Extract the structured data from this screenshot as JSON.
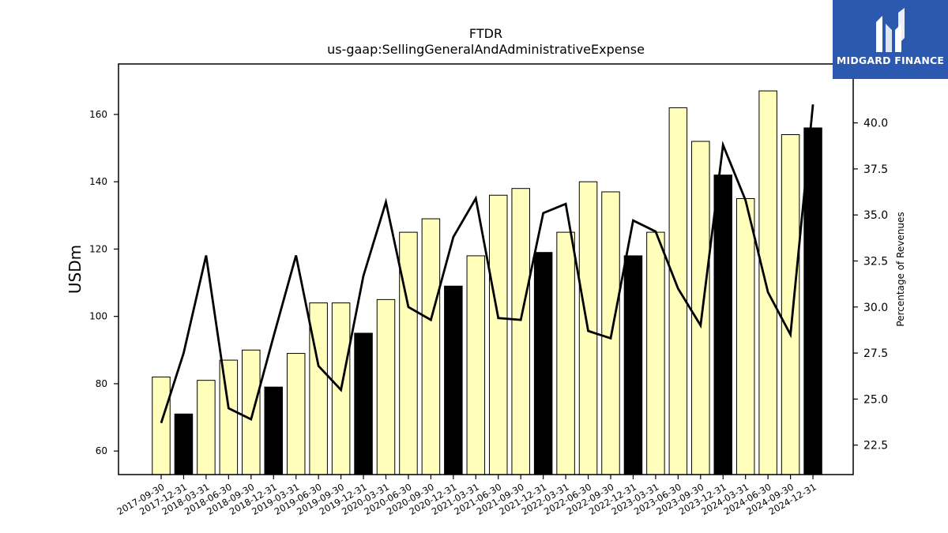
{
  "chart_data": {
    "type": "bar+line",
    "title": "FTDR",
    "subtitle": "us-gaap:SellingGeneralAndAdministrativeExpense",
    "ylabel": "USDm",
    "y2label": "Percentage of Revenues",
    "ylim": [
      53,
      175
    ],
    "y2lim": [
      20.9,
      43.2
    ],
    "yticks": [
      60,
      80,
      100,
      120,
      140,
      160
    ],
    "y2ticks": [
      "22.5",
      "25.0",
      "27.5",
      "30.0",
      "32.5",
      "35.0",
      "37.5",
      "40.0"
    ],
    "categories": [
      "2017-09-30",
      "2017-12-31",
      "2018-03-31",
      "2018-06-30",
      "2018-09-30",
      "2018-12-31",
      "2019-03-31",
      "2019-06-30",
      "2019-09-30",
      "2019-12-31",
      "2020-03-31",
      "2020-06-30",
      "2020-09-30",
      "2020-12-31",
      "2021-03-31",
      "2021-06-30",
      "2021-09-30",
      "2021-12-31",
      "2022-03-31",
      "2022-06-30",
      "2022-09-30",
      "2022-12-31",
      "2023-03-31",
      "2023-06-30",
      "2023-09-30",
      "2023-12-31",
      "2024-03-31",
      "2024-06-30",
      "2024-09-30",
      "2024-12-31"
    ],
    "bars": [
      82,
      71,
      81,
      87,
      90,
      79,
      89,
      104,
      104,
      95,
      105,
      125,
      129,
      109,
      118,
      136,
      138,
      119,
      125,
      140,
      137,
      118,
      125,
      162,
      152,
      142,
      135,
      167,
      154,
      156
    ],
    "bar_highlight": [
      false,
      true,
      false,
      false,
      false,
      true,
      false,
      false,
      false,
      true,
      false,
      false,
      false,
      true,
      false,
      false,
      false,
      true,
      false,
      false,
      false,
      true,
      false,
      false,
      false,
      true,
      false,
      false,
      false,
      true
    ],
    "line_values": [
      23.7,
      27.5,
      32.8,
      24.5,
      23.9,
      28.4,
      32.8,
      26.8,
      25.5,
      31.7,
      35.7,
      30.0,
      29.3,
      33.8,
      35.9,
      29.4,
      29.3,
      35.1,
      35.6,
      28.7,
      28.3,
      34.7,
      34.1,
      31.0,
      29.0,
      38.8,
      35.8,
      30.8,
      28.5,
      41.0
    ],
    "colors": {
      "bar": "#ffffbb",
      "bar_highlight": "#000000",
      "line": "#000000",
      "logo_bg": "#2c59b0"
    }
  },
  "logo": {
    "text": "MIDGARD FINANCE"
  }
}
